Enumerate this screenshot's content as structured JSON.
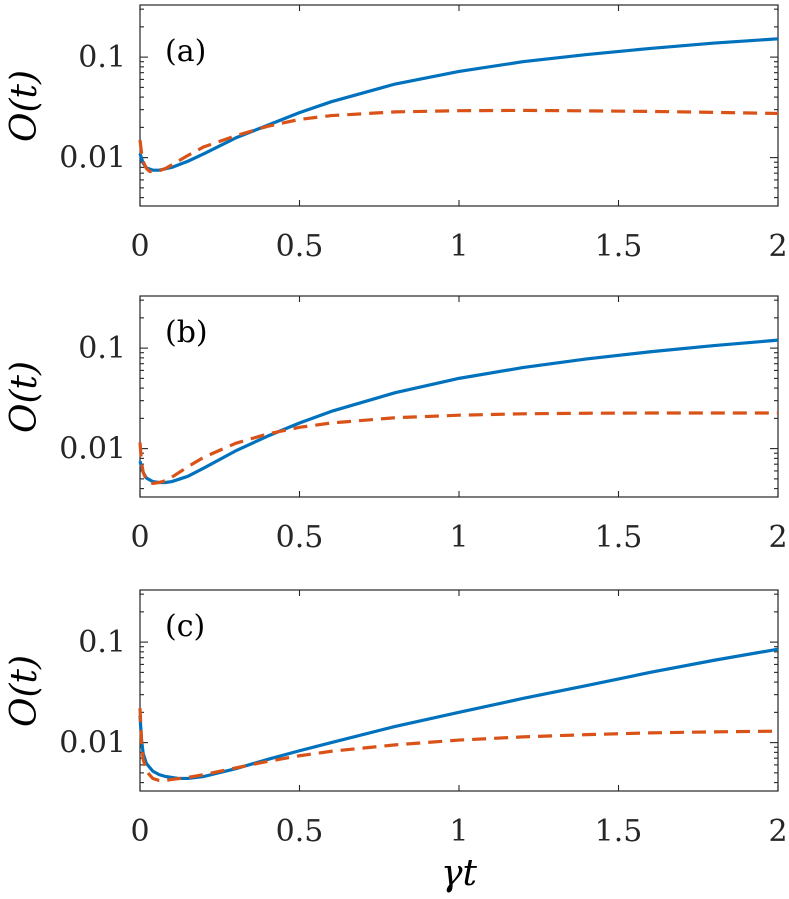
{
  "chart_data": [
    {
      "type": "line",
      "panel_label": "(a)",
      "ylabel": "O(t)",
      "xlabel": "",
      "yscale": "log",
      "xlim": [
        0,
        2
      ],
      "ylim": [
        0.0033,
        0.33
      ],
      "x_ticks": [
        "0",
        "0.5",
        "1",
        "1.5",
        "2"
      ],
      "x_tick_values": [
        0,
        0.5,
        1,
        1.5,
        2
      ],
      "y_ticks": [
        "0.01",
        "0.1"
      ],
      "y_tick_values": [
        0.01,
        0.1
      ],
      "series": [
        {
          "name": "solid",
          "style": "solid",
          "color": "#0072BD",
          "x": [
            0,
            0.01,
            0.02,
            0.04,
            0.06,
            0.1,
            0.15,
            0.2,
            0.3,
            0.4,
            0.5,
            0.6,
            0.8,
            1.0,
            1.2,
            1.4,
            1.6,
            1.8,
            2.0
          ],
          "y": [
            0.011,
            0.0088,
            0.0079,
            0.0075,
            0.0075,
            0.008,
            0.0092,
            0.0109,
            0.0157,
            0.021,
            0.028,
            0.036,
            0.054,
            0.072,
            0.09,
            0.106,
            0.122,
            0.138,
            0.152
          ]
        },
        {
          "name": "dashed",
          "style": "dashed",
          "color": "#D95319",
          "x": [
            0,
            0.005,
            0.01,
            0.02,
            0.03,
            0.05,
            0.08,
            0.1,
            0.15,
            0.2,
            0.3,
            0.4,
            0.5,
            0.6,
            0.8,
            1.0,
            1.2,
            1.4,
            1.6,
            1.8,
            2.0
          ],
          "y": [
            0.015,
            0.011,
            0.0092,
            0.0078,
            0.0073,
            0.0072,
            0.0078,
            0.0085,
            0.0105,
            0.0128,
            0.0165,
            0.0205,
            0.024,
            0.0262,
            0.0285,
            0.0293,
            0.0295,
            0.0292,
            0.0288,
            0.0282,
            0.0275
          ]
        }
      ]
    },
    {
      "type": "line",
      "panel_label": "(b)",
      "ylabel": "O(t)",
      "xlabel": "",
      "yscale": "log",
      "xlim": [
        0,
        2
      ],
      "ylim": [
        0.0033,
        0.33
      ],
      "x_ticks": [
        "0",
        "0.5",
        "1",
        "1.5",
        "2"
      ],
      "x_tick_values": [
        0,
        0.5,
        1,
        1.5,
        2
      ],
      "y_ticks": [
        "0.01",
        "0.1"
      ],
      "y_tick_values": [
        0.01,
        0.1
      ],
      "series": [
        {
          "name": "solid",
          "style": "solid",
          "color": "#0072BD",
          "x": [
            0,
            0.01,
            0.02,
            0.04,
            0.06,
            0.08,
            0.1,
            0.15,
            0.2,
            0.3,
            0.4,
            0.5,
            0.6,
            0.8,
            1.0,
            1.2,
            1.4,
            1.6,
            1.8,
            2.0
          ],
          "y": [
            0.0075,
            0.0058,
            0.0051,
            0.0047,
            0.0046,
            0.0046,
            0.0047,
            0.0053,
            0.0064,
            0.0095,
            0.0133,
            0.018,
            0.0235,
            0.036,
            0.05,
            0.064,
            0.078,
            0.092,
            0.106,
            0.12
          ]
        },
        {
          "name": "dashed",
          "style": "dashed",
          "color": "#D95319",
          "x": [
            0,
            0.005,
            0.01,
            0.02,
            0.04,
            0.06,
            0.08,
            0.1,
            0.15,
            0.2,
            0.3,
            0.4,
            0.5,
            0.6,
            0.8,
            1.0,
            1.2,
            1.4,
            1.6,
            1.8,
            2.0
          ],
          "y": [
            0.0115,
            0.0072,
            0.0058,
            0.0049,
            0.0045,
            0.0046,
            0.0048,
            0.0052,
            0.0066,
            0.0082,
            0.0113,
            0.014,
            0.0163,
            0.018,
            0.0203,
            0.0215,
            0.0222,
            0.0225,
            0.0226,
            0.0226,
            0.0226
          ]
        }
      ]
    },
    {
      "type": "line",
      "panel_label": "(c)",
      "ylabel": "O(t)",
      "xlabel": "γt",
      "yscale": "log",
      "xlim": [
        0,
        2
      ],
      "ylim": [
        0.0033,
        0.33
      ],
      "x_ticks": [
        "0",
        "0.5",
        "1",
        "1.5",
        "2"
      ],
      "x_tick_values": [
        0,
        0.5,
        1,
        1.5,
        2
      ],
      "y_ticks": [
        "0.01",
        "0.1"
      ],
      "y_tick_values": [
        0.01,
        0.1
      ],
      "series": [
        {
          "name": "solid",
          "style": "solid",
          "color": "#0072BD",
          "x": [
            0,
            0.005,
            0.01,
            0.02,
            0.04,
            0.06,
            0.08,
            0.1,
            0.12,
            0.15,
            0.2,
            0.3,
            0.4,
            0.5,
            0.6,
            0.8,
            1.0,
            1.2,
            1.4,
            1.6,
            1.8,
            2.0
          ],
          "y": [
            0.0185,
            0.0105,
            0.0078,
            0.0062,
            0.0052,
            0.0048,
            0.0046,
            0.0045,
            0.0044,
            0.0044,
            0.0046,
            0.0055,
            0.0068,
            0.0083,
            0.01,
            0.0145,
            0.02,
            0.0275,
            0.037,
            0.05,
            0.066,
            0.085
          ]
        },
        {
          "name": "dashed",
          "style": "dashed",
          "color": "#D95319",
          "x": [
            0,
            0.005,
            0.01,
            0.02,
            0.04,
            0.06,
            0.08,
            0.1,
            0.15,
            0.2,
            0.3,
            0.4,
            0.5,
            0.6,
            0.8,
            1.0,
            1.2,
            1.4,
            1.6,
            1.8,
            2.0
          ],
          "y": [
            0.022,
            0.01,
            0.0068,
            0.0052,
            0.0044,
            0.0042,
            0.0042,
            0.0043,
            0.0045,
            0.0048,
            0.0056,
            0.0065,
            0.0074,
            0.0082,
            0.0095,
            0.0106,
            0.0114,
            0.012,
            0.0125,
            0.0128,
            0.013
          ]
        }
      ]
    }
  ]
}
